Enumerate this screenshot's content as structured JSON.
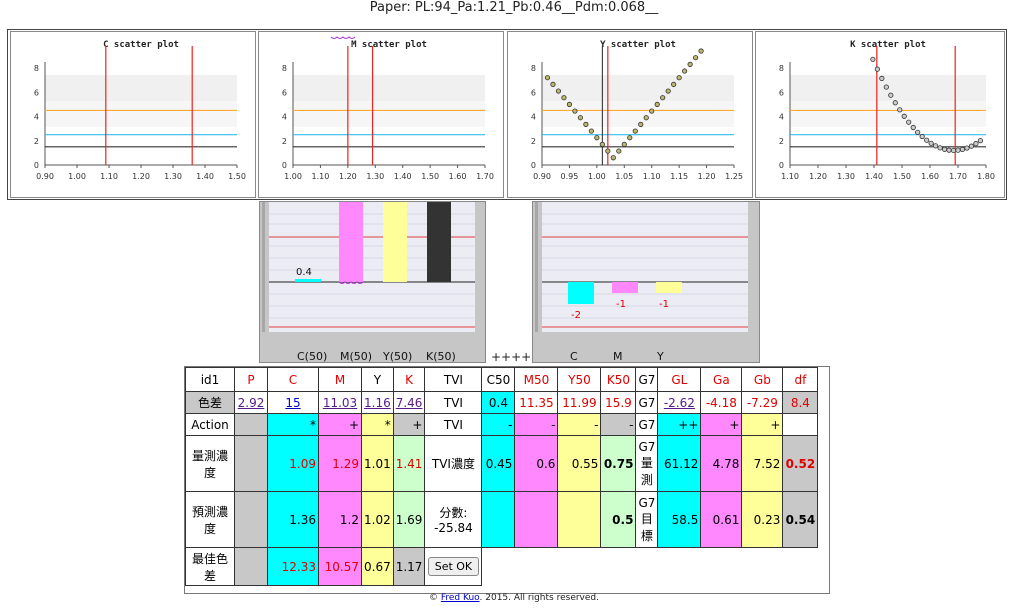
{
  "title": "Paper: PL:94_Pa:1.21_Pb:0.46__Pdm:0.068__",
  "scatter_plots": [
    {
      "title": "C scatter plot",
      "xticks": [
        "0.90",
        "1.00",
        "1.10",
        "1.20",
        "1.30",
        "1.40",
        "1.50"
      ],
      "yticks": [
        "0",
        "2",
        "4",
        "6",
        "8"
      ],
      "red_lines_x": [
        1.09,
        1.36
      ],
      "black_line_x": null,
      "points": []
    },
    {
      "title": "M scatter plot",
      "xticks": [
        "1.00",
        "1.10",
        "1.20",
        "1.30",
        "1.40",
        "1.50",
        "1.60",
        "1.70"
      ],
      "yticks": [
        "0",
        "2",
        "4",
        "6",
        "8"
      ],
      "red_lines_x": [
        1.2,
        1.29
      ],
      "black_line_x": null,
      "points": []
    },
    {
      "title": "Y scatter plot",
      "xticks": [
        "0.90",
        "0.95",
        "1.00",
        "1.05",
        "1.10",
        "1.15",
        "1.20",
        "1.25"
      ],
      "yticks": [
        "0",
        "2",
        "4",
        "6",
        "8"
      ],
      "red_lines_x": [
        1.02
      ],
      "black_line_x": 1.01,
      "points": "v-curve"
    },
    {
      "title": "K scatter plot",
      "xticks": [
        "1.10",
        "1.20",
        "1.30",
        "1.40",
        "1.50",
        "1.60",
        "1.70",
        "1.80"
      ],
      "yticks": [
        "0",
        "2",
        "4",
        "6",
        "8"
      ],
      "red_lines_x": [
        1.41,
        1.69
      ],
      "black_line_x": null,
      "points": "u-curve"
    }
  ],
  "bar_left": {
    "labels": [
      "C(50)",
      "M(50)",
      "Y(50)",
      "K(50)"
    ],
    "value_label": "0.4"
  },
  "bar_right": {
    "labels": [
      "C",
      "M",
      "Y"
    ],
    "value_labels": [
      "-2",
      "-1",
      "-1"
    ]
  },
  "separator": "++++",
  "table": {
    "header": [
      "id1",
      "P",
      "C",
      "M",
      "Y",
      "K",
      "TVI",
      "C50",
      "M50",
      "Y50",
      "K50",
      "G7",
      "GL",
      "Ga",
      "Gb",
      "df"
    ],
    "row_diff": {
      "label": "色差",
      "P": "2.92",
      "C": "15",
      "M": "11.03",
      "Y": "1.16",
      "K": "7.46",
      "TVI": "TVI",
      "C50": "0.4",
      "M50": "11.35",
      "Y50": "11.99",
      "K50": "15.9",
      "G7": "G7",
      "GL": "-2.62",
      "Ga": "-4.18",
      "Gb": "-7.29",
      "df": "8.4"
    },
    "row_action": {
      "label": "Action",
      "C": "*",
      "M": "+",
      "Y": "*",
      "K": "+",
      "TVI": "TVI",
      "C50": "-",
      "M50": "-",
      "Y50": "-",
      "K50": "-",
      "G7": "G7",
      "GL": "++",
      "Ga": "+",
      "Gb": "+"
    },
    "row_measured": {
      "label": "量測濃度",
      "C": "1.09",
      "M": "1.29",
      "Y": "1.01",
      "K": "1.41",
      "TVI": "TVI濃度",
      "C50": "0.45",
      "M50": "0.6",
      "Y50": "0.55",
      "K50": "0.75",
      "G7": "G7量測",
      "GL": "61.12",
      "Ga": "4.78",
      "Gb": "7.52",
      "df": "0.52"
    },
    "row_predicted": {
      "label": "預測濃度",
      "C": "1.36",
      "M": "1.2",
      "Y": "1.02",
      "K": "1.69",
      "TVI": "分數:\n-25.84",
      "K50": "0.5",
      "G7": "G7目標",
      "GL": "58.5",
      "Ga": "0.61",
      "Gb": "0.23",
      "df": "0.54"
    },
    "row_best": {
      "label": "最佳色差",
      "C": "12.33",
      "M": "10.57",
      "Y": "0.67",
      "K": "1.17",
      "button": "Set OK"
    }
  },
  "footer": {
    "copy": "©",
    "author": "Fred Kuo",
    "rest": ". 2015. All rights reserved."
  }
}
